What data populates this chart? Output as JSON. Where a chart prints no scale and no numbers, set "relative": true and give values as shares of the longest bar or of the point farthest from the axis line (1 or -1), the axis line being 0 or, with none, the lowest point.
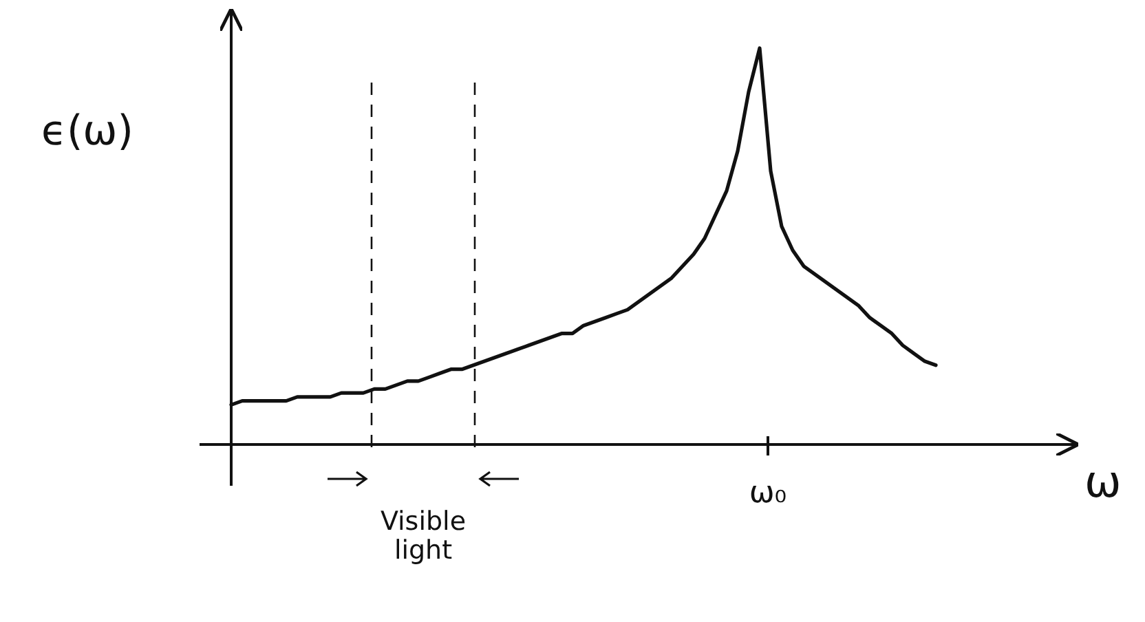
{
  "chart_data": {
    "type": "line",
    "relative": true,
    "xlabel": "ω",
    "ylabel": "ϵ(ω)",
    "categories": [
      null,
      null,
      null,
      null,
      null,
      null,
      null,
      null,
      null,
      null,
      null,
      null,
      null,
      null,
      null,
      null,
      null,
      null,
      null,
      null,
      null,
      null,
      null,
      null,
      null,
      null,
      null,
      null,
      null,
      null,
      null,
      null,
      null,
      null,
      null,
      null,
      null,
      null,
      null,
      null,
      null,
      null,
      null,
      null,
      null,
      null,
      null,
      null,
      null,
      null,
      null,
      null,
      null,
      null,
      null,
      null,
      null,
      null,
      null,
      null,
      null,
      null,
      null,
      null,
      null
    ],
    "values": [
      0.1,
      0.11,
      0.11,
      0.11,
      0.11,
      0.11,
      0.12,
      0.12,
      0.12,
      0.12,
      0.13,
      0.13,
      0.13,
      0.14,
      0.14,
      0.15,
      0.16,
      0.16,
      0.17,
      0.18,
      0.19,
      0.19,
      0.2,
      0.21,
      0.22,
      0.23,
      0.24,
      0.25,
      0.26,
      0.27,
      0.28,
      0.28,
      0.3,
      0.31,
      0.32,
      0.33,
      0.34,
      0.36,
      0.38,
      0.4,
      0.42,
      0.45,
      0.48,
      0.52,
      0.58,
      0.64,
      0.74,
      0.89,
      1.0,
      0.69,
      0.55,
      0.49,
      0.45,
      0.43,
      0.41,
      0.39,
      0.37,
      0.35,
      0.32,
      0.3,
      0.28,
      0.25,
      0.23,
      0.21,
      0.2
    ],
    "color": "#111111",
    "annotations": [
      "Visible light",
      "ω₀"
    ]
  }
}
